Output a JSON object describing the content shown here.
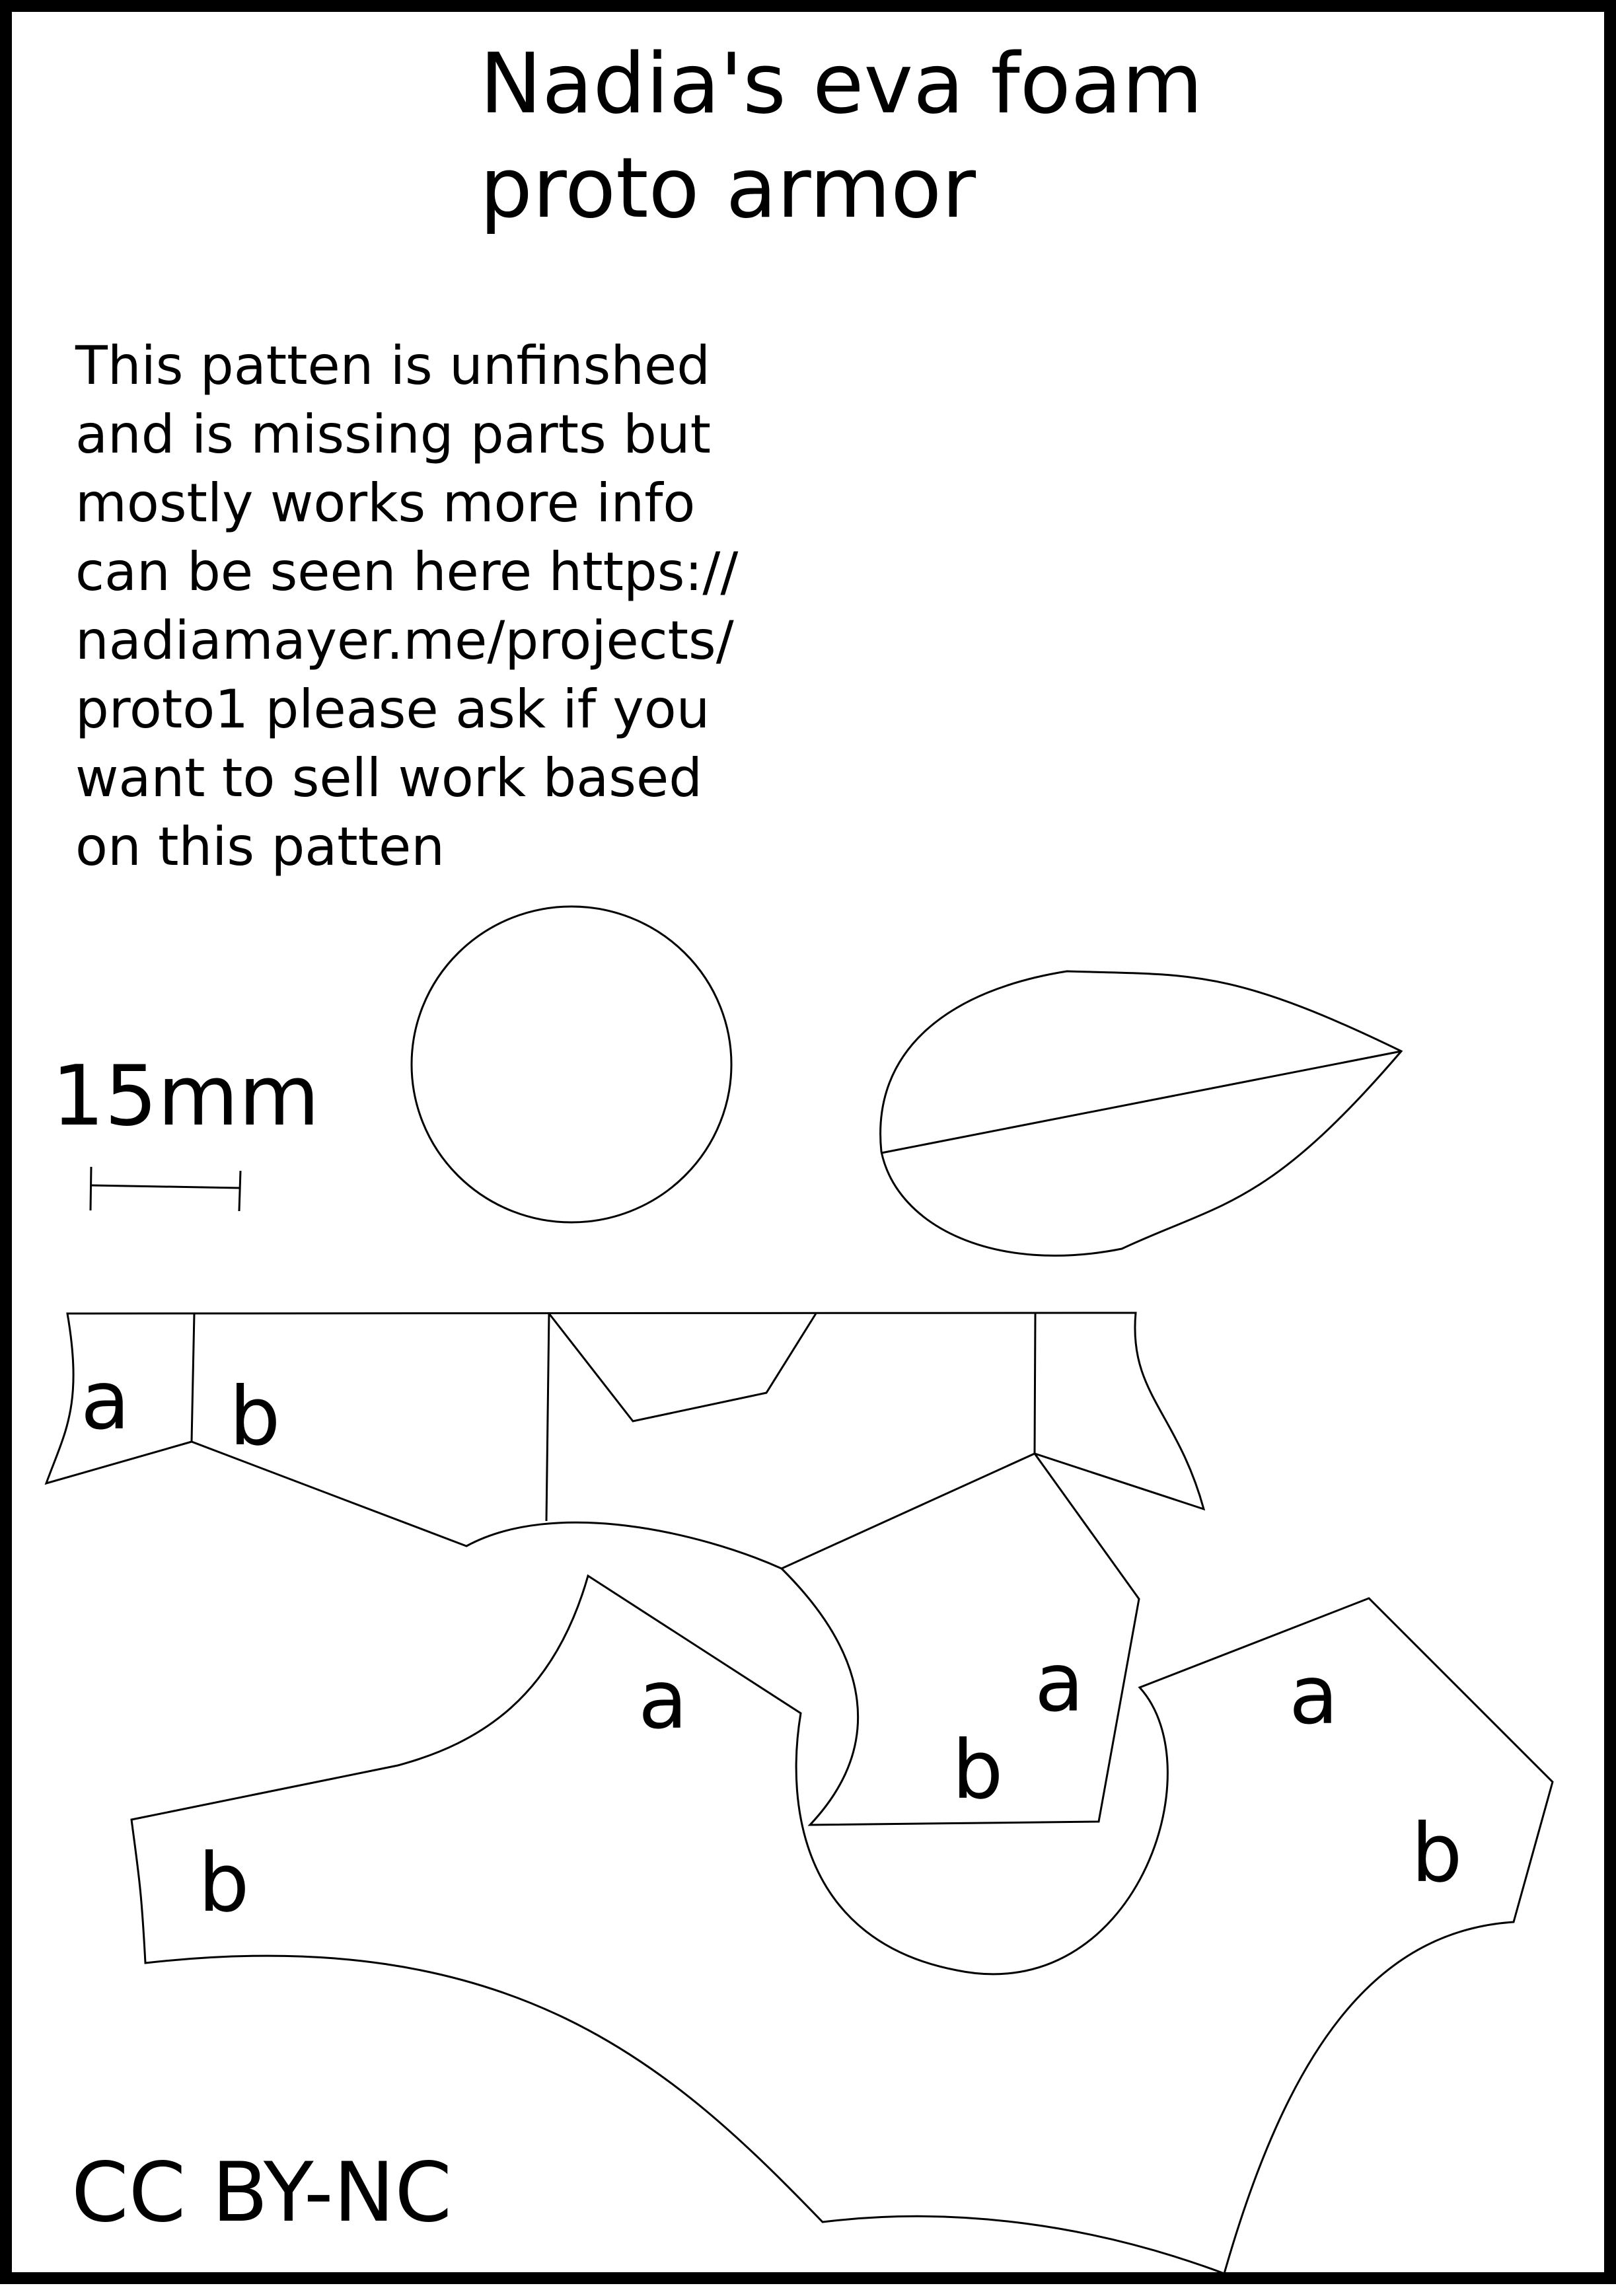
{
  "title": "Nadia's eva foam\nproto armor",
  "notice": "This patten is unfinshed\nand is missing parts but\nmostly works more info\ncan be seen here https://\nnadiamayer.me/projects/\nproto1 please ask if you\nwant to sell work based\non this patten",
  "scale": {
    "label": "15mm"
  },
  "piece_labels": {
    "a": "a",
    "b": "b"
  },
  "license": "CC BY-NC",
  "colors": {
    "ink": "#000000",
    "paper": "#ffffff"
  }
}
